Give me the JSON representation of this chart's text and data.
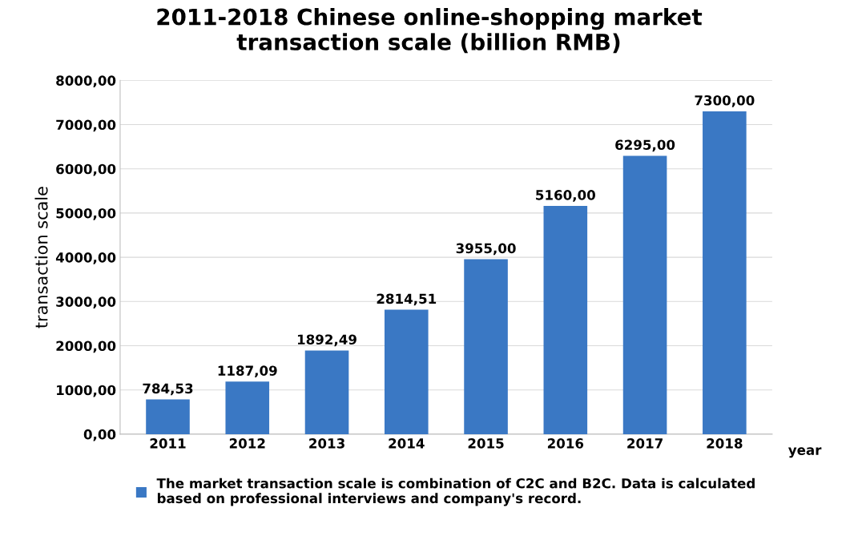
{
  "chart_data": {
    "type": "bar",
    "title": "2011-2018 Chinese online-shopping market\ntransaction scale (billion RMB)",
    "xlabel": "year",
    "ylabel": "transaction scale",
    "categories": [
      "2011",
      "2012",
      "2013",
      "2014",
      "2015",
      "2016",
      "2017",
      "2018"
    ],
    "series": [
      {
        "name": "The market transaction scale is combination of C2C and B2C. Data is calculated based on professional interviews and company's record.",
        "color": "#3a78c4",
        "values": [
          784.53,
          1187.09,
          1892.49,
          2814.51,
          3955,
          5160,
          6295,
          7300
        ],
        "value_labels": [
          "784,53",
          "1187,09",
          "1892,49",
          "2814,51",
          "3955,00",
          "5160,00",
          "6295,00",
          "7300,00"
        ]
      }
    ],
    "ylim": [
      0,
      8000
    ],
    "yticks": [
      {
        "value": 0,
        "label": "0,00"
      },
      {
        "value": 1000,
        "label": "1000,00"
      },
      {
        "value": 2000,
        "label": "2000,00"
      },
      {
        "value": 3000,
        "label": "3000,00"
      },
      {
        "value": 4000,
        "label": "4000,00"
      },
      {
        "value": 5000,
        "label": "5000,00"
      },
      {
        "value": 6000,
        "label": "6000,00"
      },
      {
        "value": 7000,
        "label": "7000,00"
      },
      {
        "value": 8000,
        "label": "8000,00"
      }
    ],
    "grid": "y",
    "legend": "bottom"
  }
}
